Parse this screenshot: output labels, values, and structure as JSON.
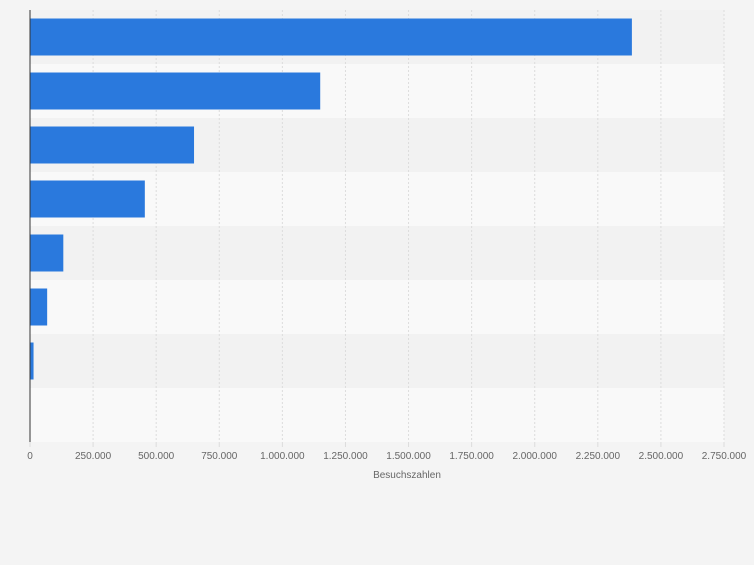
{
  "chart_data": {
    "type": "bar",
    "orientation": "horizontal",
    "title": "",
    "xlabel": "Besuchszahlen",
    "ylabel": "",
    "xlim": [
      0,
      2750000
    ],
    "grid": true,
    "categories": [
      "",
      "",
      "",
      "",
      "",
      "",
      "",
      ""
    ],
    "values": [
      2385000,
      1150000,
      650000,
      455000,
      132000,
      68000,
      14000,
      0
    ],
    "x_ticks": [
      0,
      250000,
      500000,
      750000,
      1000000,
      1250000,
      1500000,
      1750000,
      2000000,
      2250000,
      2500000,
      2750000
    ],
    "x_tick_labels": [
      "0",
      "250.000",
      "500.000",
      "750.000",
      "1.000.000",
      "1.250.000",
      "1.500.000",
      "1.750.000",
      "2.000.000",
      "2.250.000",
      "2.500.000",
      "2.750.000"
    ],
    "colors": {
      "bar": "#2a79dd",
      "band_dark": "#f2f2f2",
      "band_light": "#f9f9f9",
      "grid": "#dcdcdc",
      "axis": "#333333",
      "tick_text": "#666666"
    }
  }
}
